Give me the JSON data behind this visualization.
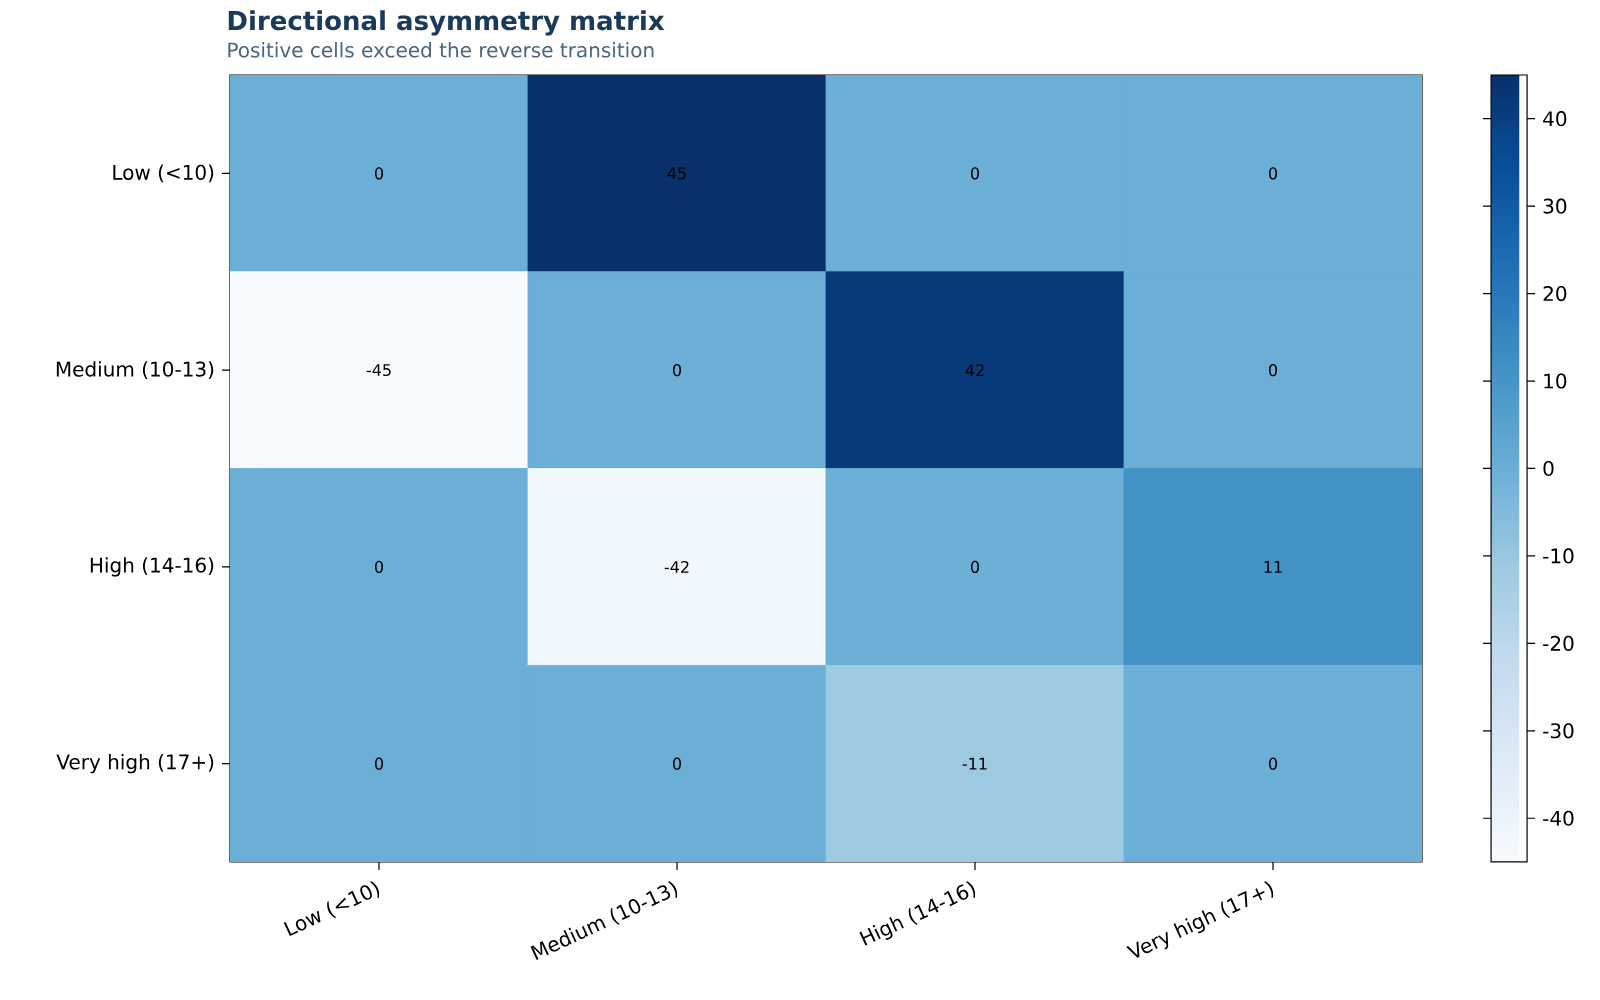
{
  "chart_data": {
    "type": "heatmap",
    "title": "Directional asymmetry matrix",
    "subtitle": "Positive cells exceed the reverse transition",
    "categories": [
      "Low (<10)",
      "Medium (10-13)",
      "High (14-16)",
      "Very high (17+)"
    ],
    "y_categories": [
      "Low (<10)",
      "Medium (10-13)",
      "High (14-16)",
      "Very high (17+)"
    ],
    "cells": [
      [
        0,
        45,
        0,
        0
      ],
      [
        -45,
        0,
        42,
        0
      ],
      [
        0,
        -42,
        0,
        11
      ],
      [
        0,
        0,
        -11,
        0
      ]
    ],
    "clim": [
      -45,
      45
    ],
    "cticks": [
      -40,
      -30,
      -20,
      -10,
      0,
      10,
      20,
      30,
      40
    ],
    "data_labels": true
  }
}
